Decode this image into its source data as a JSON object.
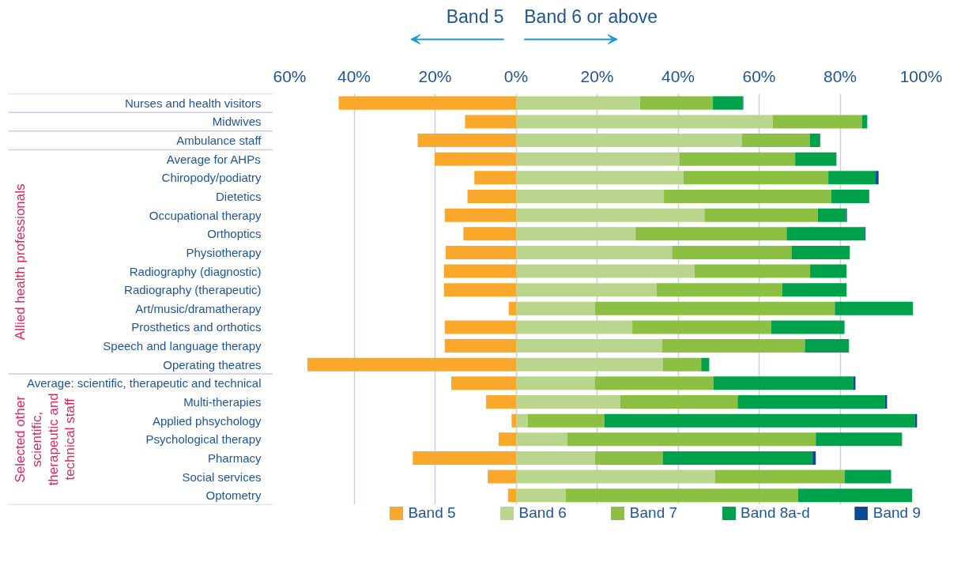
{
  "chart_data": {
    "type": "bar",
    "orientation": "horizontal",
    "stacked": true,
    "categories": [
      "Nurses and health visitors",
      "Midwives",
      "Ambulance staff",
      "Average for AHPs",
      "Chiropody/podiatry",
      "Dietetics",
      "Occupational therapy",
      "Orthoptics",
      "Physiotherapy",
      "Radiography (diagnostic)",
      "Radiography (therapeutic)",
      "Art/music/dramatherapy",
      "Prosthetics and orthotics",
      "Speech and language therapy",
      "Operating theatres",
      "Average: scientific, therapeutic and technical",
      "Multi-therapies",
      "Applied phsychology",
      "Psychological therapy",
      "Pharmacy",
      "Social services",
      "Optometry"
    ],
    "series": [
      {
        "name": "Band 5",
        "color": "#f9a82c",
        "values": [
          -43.8,
          -12.6,
          -24.3,
          -20.1,
          -10.3,
          -12.0,
          -17.6,
          -13.0,
          -17.4,
          -17.8,
          -17.8,
          -1.8,
          -17.6,
          -17.6,
          -51.5,
          -16.0,
          -7.4,
          -1.1,
          -4.3,
          -25.5,
          -7.0,
          -2.0
        ]
      },
      {
        "name": "Band 6",
        "color": "#bad68e",
        "values": [
          30.6,
          63.4,
          55.7,
          40.3,
          41.3,
          36.5,
          46.5,
          29.5,
          38.5,
          44.1,
          34.7,
          19.5,
          28.7,
          36.0,
          36.2,
          19.4,
          25.7,
          2.9,
          12.6,
          19.5,
          49.1,
          12.3
        ]
      },
      {
        "name": "Band 7",
        "color": "#8cc043",
        "values": [
          18.0,
          22.0,
          16.8,
          28.6,
          35.8,
          41.3,
          28.0,
          37.3,
          29.5,
          28.5,
          31.0,
          59.2,
          34.3,
          35.3,
          9.5,
          29.3,
          29.0,
          18.9,
          61.4,
          16.7,
          32.0,
          57.3
        ]
      },
      {
        "name": "Band 8a-d",
        "color": "#00a14b",
        "values": [
          7.3,
          1.3,
          2.6,
          10.2,
          11.7,
          9.4,
          7.0,
          19.3,
          14.4,
          9.0,
          15.9,
          19.3,
          18.1,
          10.9,
          2.0,
          34.5,
          36.3,
          76.7,
          21.3,
          37.0,
          11.5,
          28.2
        ]
      },
      {
        "name": "Band 9",
        "color": "#0a4b96",
        "values": [
          0.2,
          0,
          0,
          0,
          0.7,
          0,
          0.2,
          0.2,
          0,
          0,
          0,
          0,
          0,
          0,
          0,
          0.6,
          0.6,
          0.5,
          0,
          0.8,
          0,
          0
        ]
      }
    ],
    "xlim": [
      -60,
      100
    ],
    "xticks": [
      {
        "value": -60,
        "label": "60%"
      },
      {
        "value": -40,
        "label": "40%"
      },
      {
        "value": -20,
        "label": "20%"
      },
      {
        "value": 0,
        "label": "0%"
      },
      {
        "value": 20,
        "label": "20%"
      },
      {
        "value": 40,
        "label": "40%"
      },
      {
        "value": 60,
        "label": "60%"
      },
      {
        "value": 80,
        "label": "80%"
      },
      {
        "value": 100,
        "label": "100%"
      }
    ],
    "grid": "x",
    "legend": "bottom",
    "annotations": [
      "Band 5",
      "Band 6 or above",
      "Allied health professionals",
      "Selected other scientific, therapeutic and technical staff"
    ]
  }
}
